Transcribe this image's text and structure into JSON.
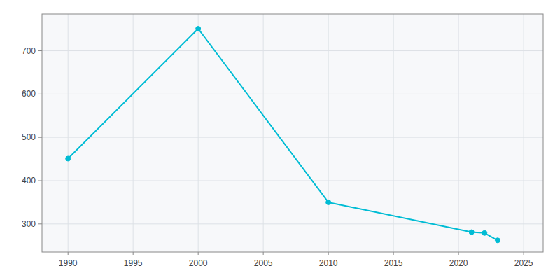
{
  "chart_data": {
    "type": "line",
    "x": [
      1990,
      2000,
      2010,
      2021,
      2022,
      2023
    ],
    "values": [
      451,
      751,
      350,
      281,
      279,
      262
    ],
    "color": "#00BCD4",
    "marker": "circle",
    "xlim": [
      1988,
      2026.5
    ],
    "ylim": [
      235,
      785
    ],
    "xticks": [
      1990,
      1995,
      2000,
      2005,
      2010,
      2015,
      2020,
      2025
    ],
    "yticks": [
      300,
      400,
      500,
      600,
      700
    ],
    "grid": true
  }
}
